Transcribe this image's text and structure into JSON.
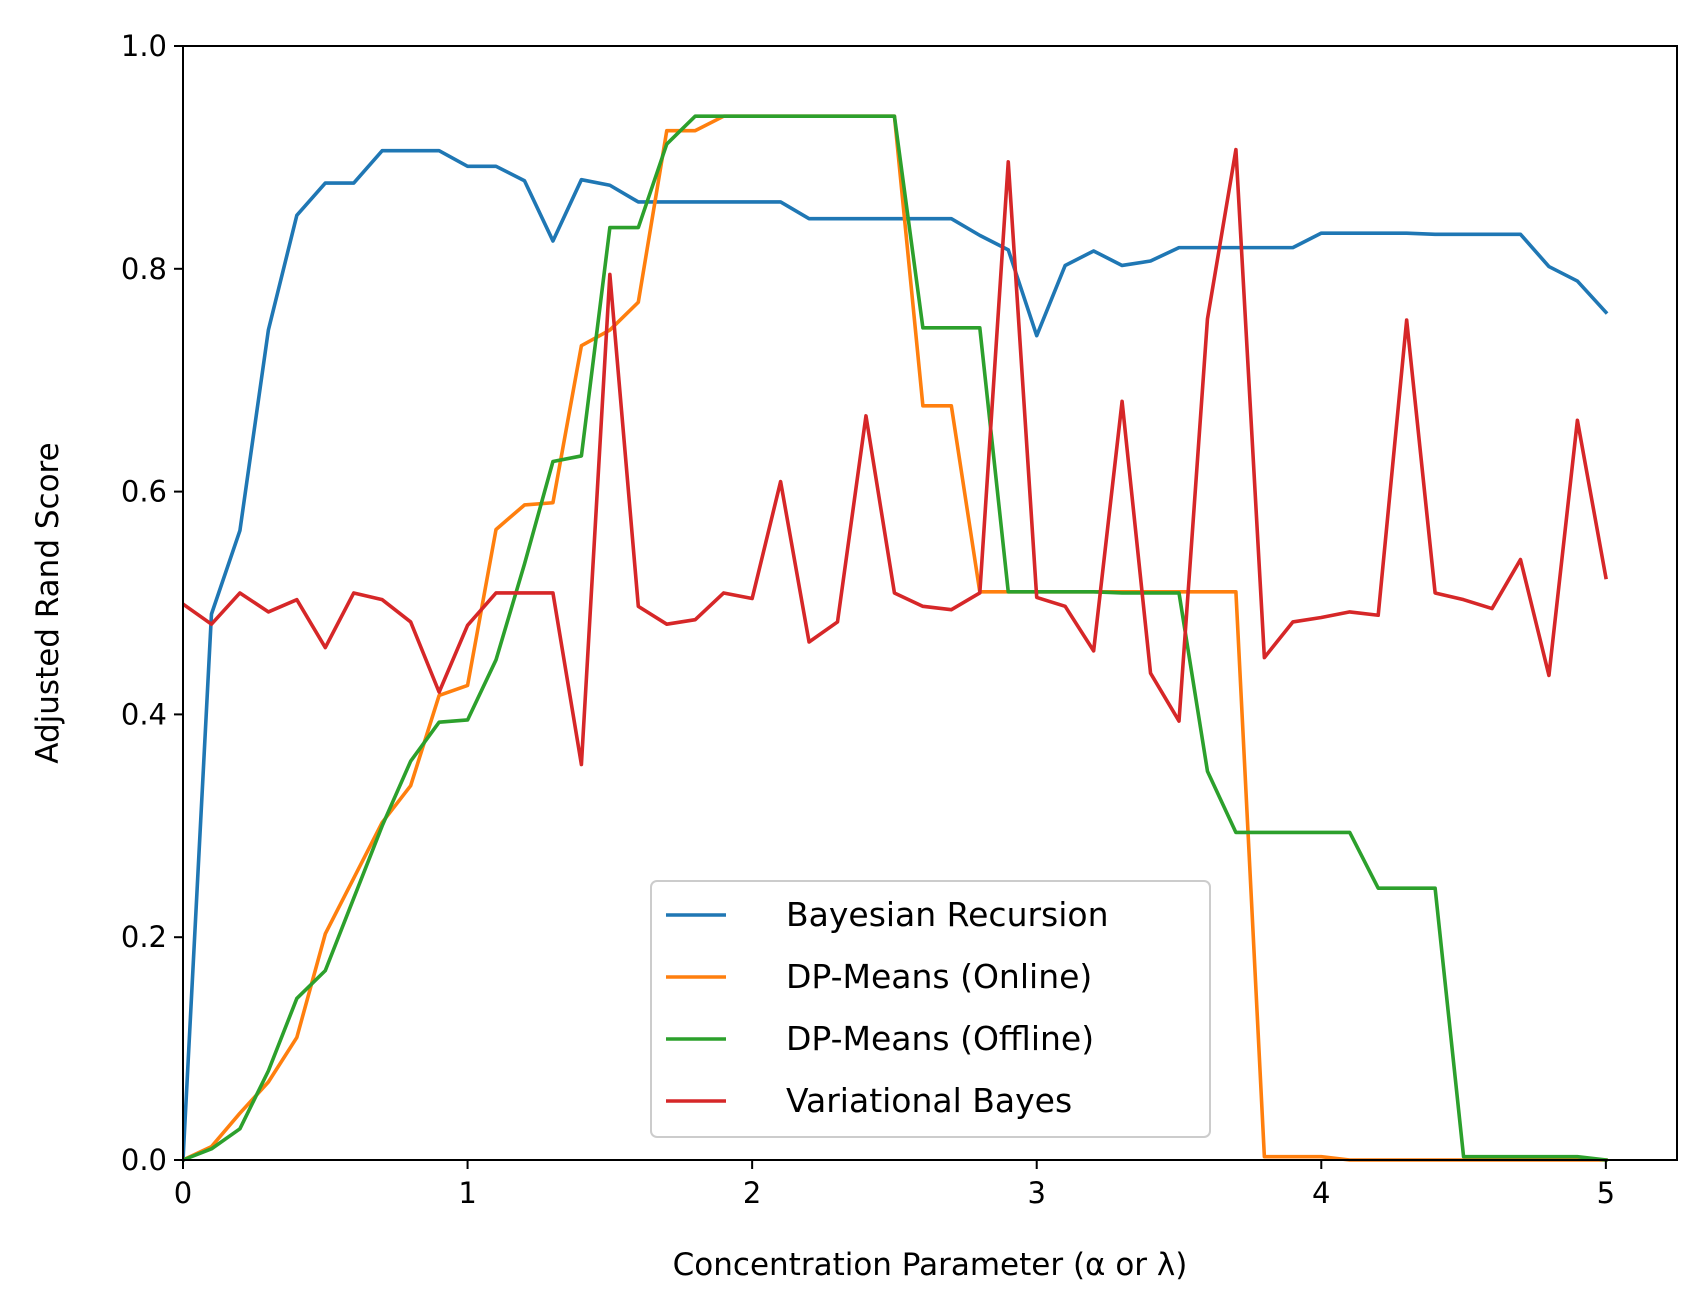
{
  "chart_data": {
    "type": "line",
    "xlabel": "Concentration Parameter (α or λ)",
    "ylabel": "Adjusted Rand Score",
    "xlim": [
      0,
      5.25
    ],
    "ylim": [
      0,
      1.0
    ],
    "xticks": [
      "0",
      "1",
      "2",
      "3",
      "4",
      "5"
    ],
    "xtick_values": [
      0,
      1,
      2,
      3,
      4,
      5
    ],
    "yticks": [
      "0.0",
      "0.2",
      "0.4",
      "0.6",
      "0.8",
      "1.0"
    ],
    "ytick_values": [
      0,
      0.2,
      0.4,
      0.6,
      0.8,
      1.0
    ],
    "grid": false,
    "legend_position": "lower-center",
    "x": [
      0,
      0.1,
      0.2,
      0.3,
      0.4,
      0.5,
      0.6,
      0.7,
      0.8,
      0.9,
      1.0,
      1.1,
      1.2,
      1.3,
      1.4,
      1.5,
      1.6,
      1.7,
      1.8,
      1.9,
      2.0,
      2.1,
      2.2,
      2.3,
      2.4,
      2.5,
      2.6,
      2.7,
      2.8,
      2.9,
      3.0,
      3.1,
      3.2,
      3.3,
      3.4,
      3.5,
      3.6,
      3.7,
      3.8,
      3.9,
      4.0,
      4.1,
      4.2,
      4.3,
      4.4,
      4.5,
      4.6,
      4.7,
      4.8,
      4.9,
      5.0
    ],
    "series": [
      {
        "name": "Bayesian Recursion",
        "color": "#1f77b4",
        "values": [
          0.0,
          0.49,
          0.565,
          0.745,
          0.848,
          0.877,
          0.877,
          0.906,
          0.906,
          0.906,
          0.892,
          0.892,
          0.879,
          0.825,
          0.88,
          0.875,
          0.86,
          0.86,
          0.86,
          0.86,
          0.86,
          0.86,
          0.845,
          0.845,
          0.845,
          0.845,
          0.845,
          0.845,
          0.83,
          0.817,
          0.74,
          0.803,
          0.816,
          0.803,
          0.807,
          0.819,
          0.819,
          0.819,
          0.819,
          0.819,
          0.832,
          0.832,
          0.832,
          0.832,
          0.831,
          0.831,
          0.831,
          0.831,
          0.802,
          0.789,
          0.761
        ]
      },
      {
        "name": "DP-Means (Online)",
        "color": "#ff7f0e",
        "values": [
          0.0,
          0.012,
          0.042,
          0.07,
          0.11,
          0.203,
          0.253,
          0.303,
          0.336,
          0.417,
          0.426,
          0.566,
          0.588,
          0.59,
          0.731,
          0.745,
          0.77,
          0.924,
          0.924,
          0.937,
          0.937,
          0.937,
          0.937,
          0.937,
          0.937,
          0.937,
          0.677,
          0.677,
          0.51,
          0.51,
          0.51,
          0.51,
          0.51,
          0.51,
          0.51,
          0.51,
          0.51,
          0.51,
          0.003,
          0.003,
          0.003,
          0.0,
          0.0,
          0.0,
          0.0,
          0.0,
          0.0,
          0.0,
          0.0,
          0.0,
          0.0
        ]
      },
      {
        "name": "DP-Means (Offline)",
        "color": "#2ca02c",
        "values": [
          0.0,
          0.01,
          0.028,
          0.08,
          0.145,
          0.17,
          0.235,
          0.3,
          0.358,
          0.393,
          0.395,
          0.449,
          0.535,
          0.627,
          0.632,
          0.837,
          0.837,
          0.912,
          0.937,
          0.937,
          0.937,
          0.937,
          0.937,
          0.937,
          0.937,
          0.937,
          0.747,
          0.747,
          0.747,
          0.51,
          0.51,
          0.51,
          0.51,
          0.509,
          0.509,
          0.509,
          0.349,
          0.294,
          0.294,
          0.294,
          0.294,
          0.294,
          0.244,
          0.244,
          0.244,
          0.003,
          0.003,
          0.003,
          0.003,
          0.003,
          0.0
        ]
      },
      {
        "name": "Variational Bayes",
        "color": "#d62728",
        "values": [
          0.499,
          0.481,
          0.509,
          0.492,
          0.503,
          0.46,
          0.509,
          0.503,
          0.483,
          0.42,
          0.48,
          0.509,
          0.509,
          0.509,
          0.355,
          0.795,
          0.497,
          0.481,
          0.485,
          0.509,
          0.504,
          0.609,
          0.465,
          0.483,
          0.668,
          0.509,
          0.497,
          0.494,
          0.509,
          0.896,
          0.505,
          0.497,
          0.457,
          0.681,
          0.437,
          0.394,
          0.755,
          0.907,
          0.451,
          0.483,
          0.487,
          0.492,
          0.489,
          0.754,
          0.509,
          0.503,
          0.495,
          0.539,
          0.435,
          0.664,
          0.523
        ]
      }
    ]
  }
}
